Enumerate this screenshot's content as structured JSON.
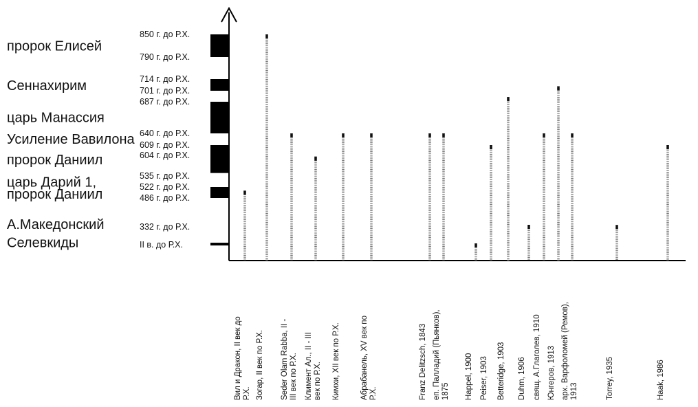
{
  "chart_data": {
    "type": "bar",
    "y_ticks": [
      {
        "label": "850 г. до Р.Х.",
        "value": 850
      },
      {
        "label": "790 г. до Р.Х.",
        "value": 790
      },
      {
        "label": "714 г. до Р.Х.",
        "value": 714
      },
      {
        "label": "701 г. до Р.Х.",
        "value": 701
      },
      {
        "label": "687 г. до Р.Х.",
        "value": 687
      },
      {
        "label": "640 г. до Р.Х.",
        "value": 640
      },
      {
        "label": "609 г. до Р.Х.",
        "value": 609
      },
      {
        "label": "604 г. до Р.Х.",
        "value": 604
      },
      {
        "label": "535 г. до Р.Х.",
        "value": 535
      },
      {
        "label": "522 г. до Р.Х.",
        "value": 522
      },
      {
        "label": "486 г. до Р.Х.",
        "value": 486
      },
      {
        "label": "332 г. до Р.Х.",
        "value": 332
      },
      {
        "label": "II в. до Р.Х.",
        "value": 200
      }
    ],
    "events": [
      {
        "label": "пророк Елисей",
        "value": 820
      },
      {
        "label": "Сеннахирим",
        "value": 707
      },
      {
        "label": "царь Манассия",
        "value": 664
      },
      {
        "label": "Усиление Вавилона",
        "value": 625
      },
      {
        "label": "пророк Даниил",
        "value": 590
      },
      {
        "label": "царь Дарий 1,",
        "value": 528
      },
      {
        "label": "пророк Даниил",
        "value": 500
      },
      {
        "label": "А.Македонский",
        "value": 346
      },
      {
        "label": "Селевкиды",
        "value": 218
      }
    ],
    "periods": [
      {
        "from": 850,
        "to": 790
      },
      {
        "from": 714,
        "to": 701
      },
      {
        "from": 687,
        "to": 640
      },
      {
        "from": 609,
        "to": 604
      },
      {
        "from": 604,
        "to": 545
      },
      {
        "from": 522,
        "to": 486
      },
      {
        "from": 215,
        "to": 195
      }
    ],
    "categories": [
      "Вил и Дракон, II век до Р.Х.",
      "Зогар, II век по Р.Х.",
      "Seder Olam Rabba, II - III век по Р.Х.",
      "Климент Ал., II - III век по Р.Х.",
      "Кимхи, XII век по Р.Х.",
      "Абрабанель, XV век по Р.Х.",
      "Franz Delitzsch, 1843",
      "еп. Палладий (Пьянков), 1875",
      "Happel, 1900",
      "Peiser, 1903",
      "Betteridge, 1903",
      "Duhm, 1906",
      "свящ. А.Глаголев, 1910",
      "Юнгеров, 1913",
      "арх. Варфоломей (Ремов), 1913",
      "Torrey, 1935",
      "Haak, 1986"
    ],
    "values": [
      510,
      850,
      640,
      600,
      640,
      640,
      640,
      640,
      210,
      609,
      693,
      343,
      640,
      706,
      640,
      342,
      609
    ],
    "ylim": [
      0,
      900
    ]
  }
}
